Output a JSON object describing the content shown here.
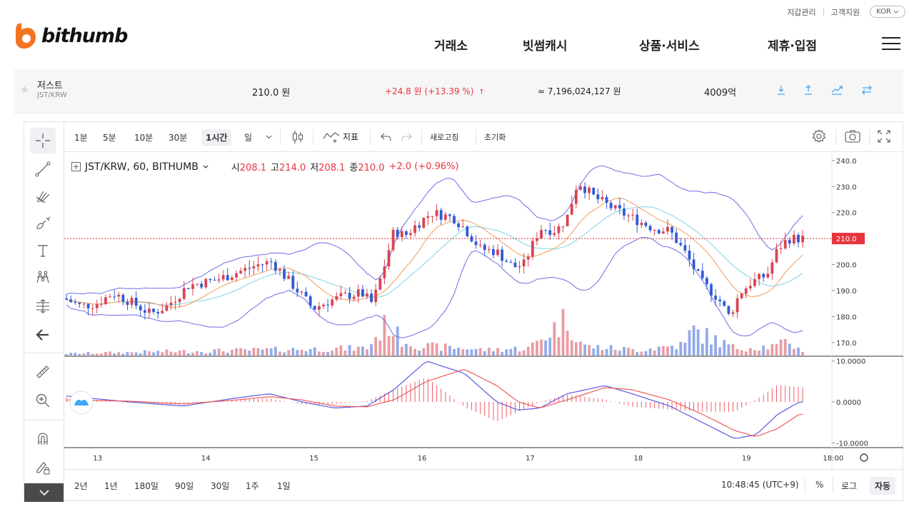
{
  "header": {
    "util_links": [
      "지갑관리",
      "고객지원"
    ],
    "language": "KOR",
    "logo_text": "bithumb",
    "brand_color": "#f37321",
    "nav": [
      "거래소",
      "빗썸캐시",
      "상품·서비스",
      "제휴·입점"
    ]
  },
  "ticker": {
    "coin_name": "저스트",
    "pair": "JST/KRW",
    "price": "210.0 원",
    "change": "+24.8 원 (+13.39 %)",
    "volume_krw": "≈ 7,196,024,127 원",
    "market_cap": "4009억",
    "up_color": "#e8343f",
    "action_color": "#3fa9f5"
  },
  "toolbar": {
    "intervals": [
      "1분",
      "5분",
      "10분",
      "30분",
      "1시간",
      "일"
    ],
    "selected_interval": "1시간",
    "indicators_label": "지표",
    "refresh_label": "새로고침",
    "reset_label": "초기화"
  },
  "legend": {
    "symbol": "JST/KRW, 60, BITHUMB",
    "open_label": "시",
    "open": "208.1",
    "high_label": "고",
    "high": "214.0",
    "low_label": "저",
    "low": "208.1",
    "close_label": "종",
    "close": "210.0",
    "change": "+2.0 (+0.96%)"
  },
  "bottom_bar": {
    "ranges": [
      "2년",
      "1년",
      "180일",
      "90일",
      "30일",
      "1주",
      "1일"
    ],
    "clock": "10:48:45 (UTC+9)",
    "percent_label": "%",
    "log_label": "로그",
    "auto_label": "자동"
  },
  "chart_data": {
    "type": "candlestick",
    "price_axis_ticks": [
      "240.0",
      "230.0",
      "220.0",
      "210.0",
      "200.0",
      "190.0",
      "180.0",
      "170.0"
    ],
    "price_range": [
      165,
      243
    ],
    "last_price_label": "210.0",
    "time_axis_ticks": [
      "13",
      "14",
      "15",
      "16",
      "17",
      "18",
      "19",
      "18:00"
    ],
    "x_range": [
      12.7,
      19.8
    ],
    "macd_axis_ticks": [
      "10.0000",
      "0.0000",
      "-10.0000"
    ],
    "macd_range": [
      -11,
      11
    ],
    "up_color": "#d94452",
    "down_color": "#2e5bd8",
    "bollinger_color": "#6d6de8",
    "ma_fast_color": "#f29a5a",
    "ma_slow_color": "#7fd3e8",
    "macd_color": "#5a5ae0",
    "signal_color": "#f05a5a",
    "close_anchors": [
      [
        12.7,
        187
      ],
      [
        12.85,
        184
      ],
      [
        13.0,
        185
      ],
      [
        13.15,
        189
      ],
      [
        13.3,
        186
      ],
      [
        13.5,
        181
      ],
      [
        13.65,
        184
      ],
      [
        13.85,
        192
      ],
      [
        14.1,
        194
      ],
      [
        14.3,
        197
      ],
      [
        14.5,
        200
      ],
      [
        14.62,
        201
      ],
      [
        14.75,
        195
      ],
      [
        14.9,
        188
      ],
      [
        15.0,
        183
      ],
      [
        15.15,
        186
      ],
      [
        15.3,
        188
      ],
      [
        15.45,
        189
      ],
      [
        15.55,
        185
      ],
      [
        15.65,
        198
      ],
      [
        15.75,
        213
      ],
      [
        15.85,
        211
      ],
      [
        15.95,
        215
      ],
      [
        16.1,
        220
      ],
      [
        16.3,
        218
      ],
      [
        16.4,
        214
      ],
      [
        16.55,
        206
      ],
      [
        16.7,
        205
      ],
      [
        16.85,
        199
      ],
      [
        16.95,
        200
      ],
      [
        17.1,
        214
      ],
      [
        17.25,
        213
      ],
      [
        17.35,
        218
      ],
      [
        17.45,
        232
      ],
      [
        17.6,
        226
      ],
      [
        17.8,
        221
      ],
      [
        17.95,
        218
      ],
      [
        18.15,
        214
      ],
      [
        18.3,
        213
      ],
      [
        18.45,
        204
      ],
      [
        18.6,
        193
      ],
      [
        18.75,
        187
      ],
      [
        18.85,
        180
      ],
      [
        18.95,
        189
      ],
      [
        19.05,
        193
      ],
      [
        19.2,
        196
      ],
      [
        19.3,
        206
      ],
      [
        19.4,
        210
      ],
      [
        19.5,
        210
      ]
    ],
    "volume_anchors": [
      [
        12.7,
        1
      ],
      [
        13.5,
        2
      ],
      [
        14.5,
        3
      ],
      [
        15.5,
        4
      ],
      [
        15.7,
        18
      ],
      [
        15.8,
        9
      ],
      [
        16.0,
        5
      ],
      [
        16.4,
        4
      ],
      [
        16.6,
        3
      ],
      [
        17.0,
        4
      ],
      [
        17.35,
        20
      ],
      [
        17.5,
        5
      ],
      [
        18.0,
        3
      ],
      [
        18.45,
        6
      ],
      [
        18.5,
        14
      ],
      [
        18.9,
        4
      ],
      [
        19.3,
        5
      ],
      [
        19.4,
        8
      ],
      [
        19.5,
        3
      ]
    ],
    "macd_anchors": [
      [
        12.7,
        1.5
      ],
      [
        13.3,
        0
      ],
      [
        13.8,
        -1
      ],
      [
        14.3,
        1
      ],
      [
        14.6,
        2
      ],
      [
        14.9,
        0
      ],
      [
        15.2,
        -1.5
      ],
      [
        15.5,
        -1
      ],
      [
        15.75,
        3
      ],
      [
        16.05,
        10
      ],
      [
        16.4,
        7
      ],
      [
        16.7,
        0
      ],
      [
        16.9,
        -2
      ],
      [
        17.1,
        -1.5
      ],
      [
        17.35,
        2
      ],
      [
        17.7,
        4
      ],
      [
        17.95,
        2
      ],
      [
        18.3,
        -1
      ],
      [
        18.6,
        -5
      ],
      [
        18.9,
        -9
      ],
      [
        19.1,
        -8
      ],
      [
        19.3,
        -3
      ],
      [
        19.5,
        0
      ]
    ],
    "signal_anchors": [
      [
        12.7,
        0.5
      ],
      [
        13.3,
        0.2
      ],
      [
        13.8,
        -0.5
      ],
      [
        14.3,
        0.5
      ],
      [
        14.6,
        1.3
      ],
      [
        14.9,
        0.5
      ],
      [
        15.2,
        -1
      ],
      [
        15.5,
        -1.2
      ],
      [
        15.75,
        0.5
      ],
      [
        16.05,
        5
      ],
      [
        16.4,
        8
      ],
      [
        16.7,
        4
      ],
      [
        16.9,
        0
      ],
      [
        17.1,
        -1.5
      ],
      [
        17.35,
        0.5
      ],
      [
        17.7,
        3.5
      ],
      [
        17.95,
        3
      ],
      [
        18.3,
        0.5
      ],
      [
        18.6,
        -3
      ],
      [
        18.9,
        -7
      ],
      [
        19.1,
        -8.5
      ],
      [
        19.3,
        -6.5
      ],
      [
        19.5,
        -3
      ]
    ]
  }
}
